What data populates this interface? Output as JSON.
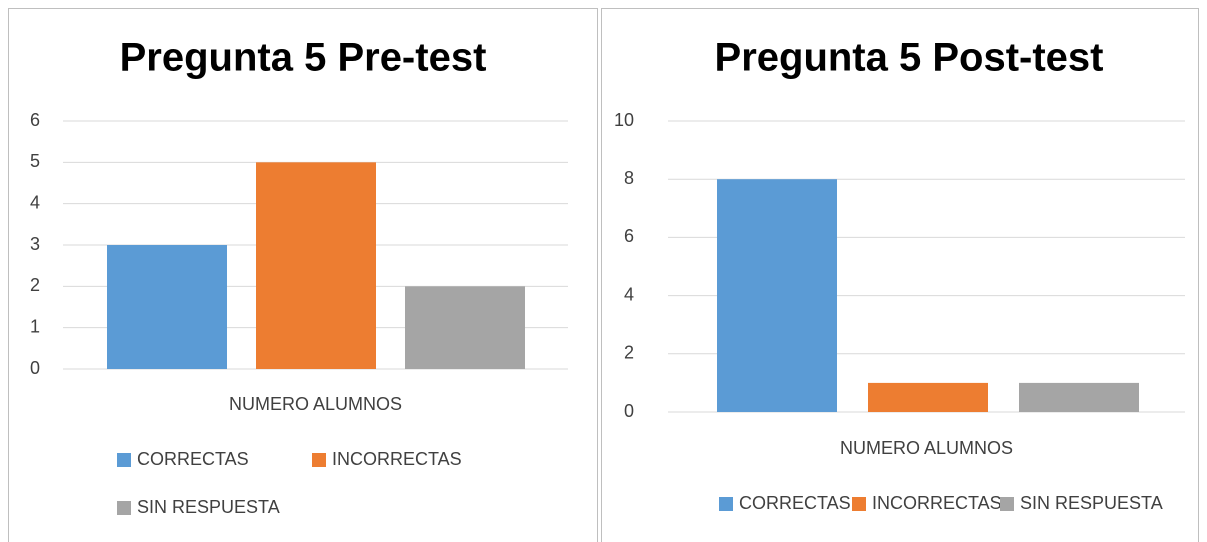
{
  "chart_data": [
    {
      "type": "bar",
      "title": "Pregunta 5 Pre-test",
      "categories": [
        "NUMERO ALUMNOS"
      ],
      "series": [
        {
          "name": "CORRECTAS",
          "color": "#5b9bd5",
          "values": [
            3
          ]
        },
        {
          "name": "INCORRECTAS",
          "color": "#ed7d31",
          "values": [
            5
          ]
        },
        {
          "name": "SIN RESPUESTA",
          "color": "#a5a5a5",
          "values": [
            2
          ]
        }
      ],
      "ylim": [
        0,
        6
      ],
      "yticks": [
        0,
        1,
        2,
        3,
        4,
        5,
        6
      ],
      "grid": true,
      "legend": "bottom"
    },
    {
      "type": "bar",
      "title": "Pregunta 5  Post-test",
      "categories": [
        "NUMERO ALUMNOS"
      ],
      "series": [
        {
          "name": "CORRECTAS",
          "color": "#5b9bd5",
          "values": [
            8
          ]
        },
        {
          "name": "INCORRECTAS",
          "color": "#ed7d31",
          "values": [
            1
          ]
        },
        {
          "name": "SIN RESPUESTA",
          "color": "#a5a5a5",
          "values": [
            1
          ]
        }
      ],
      "ylim": [
        0,
        10
      ],
      "yticks": [
        0,
        2,
        4,
        6,
        8,
        10
      ],
      "grid": true,
      "legend": "bottom"
    }
  ]
}
